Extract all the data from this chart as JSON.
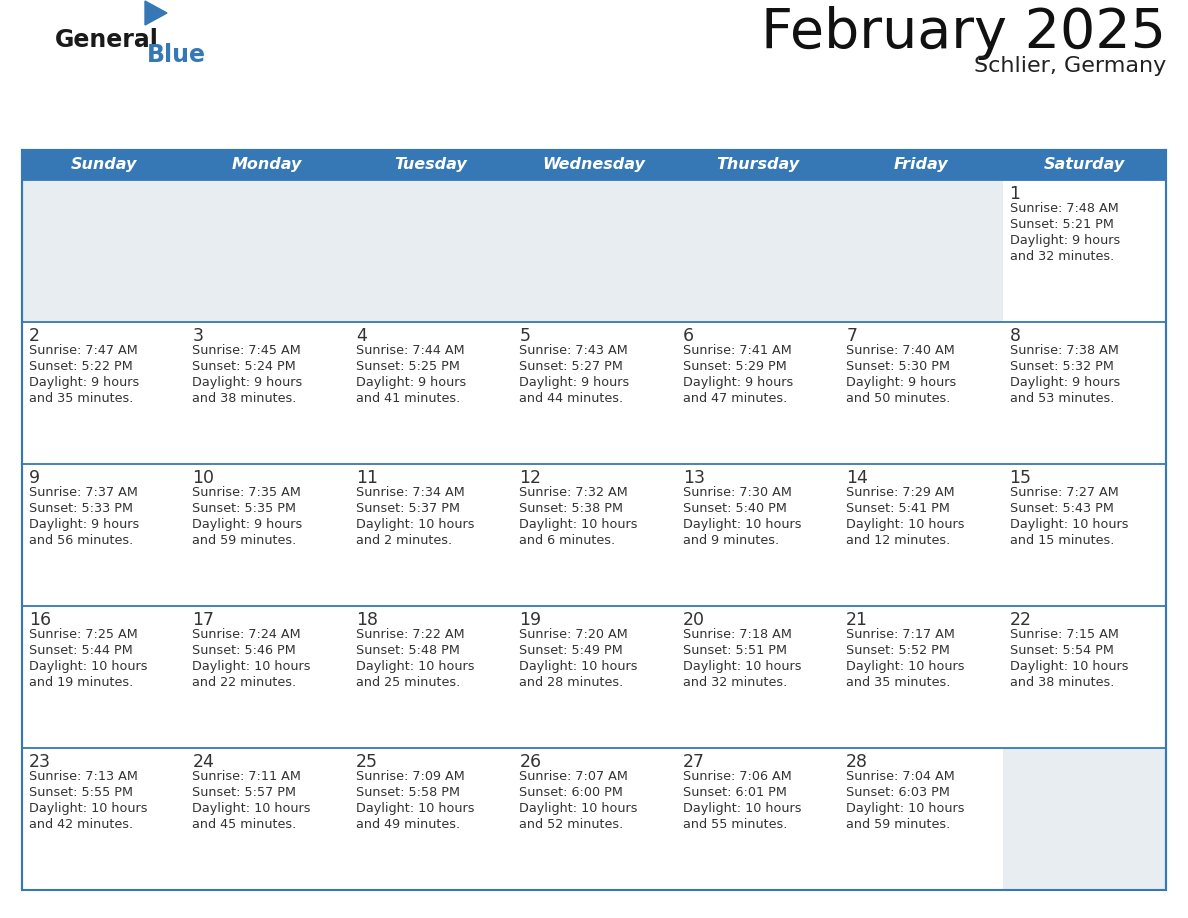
{
  "title": "February 2025",
  "subtitle": "Schlier, Germany",
  "header_bg_color": "#3578b5",
  "header_text_color": "#ffffff",
  "cell_white_bg": "#ffffff",
  "cell_gray_bg": "#e8edf2",
  "outer_border_color": "#3578b5",
  "row_separator_color": "#3578b5",
  "day_number_color": "#333333",
  "cell_text_color": "#333333",
  "weekdays": [
    "Sunday",
    "Monday",
    "Tuesday",
    "Wednesday",
    "Thursday",
    "Friday",
    "Saturday"
  ],
  "calendar_data": [
    [
      {
        "day": null,
        "sunrise": null,
        "sunset": null,
        "daylight": null
      },
      {
        "day": null,
        "sunrise": null,
        "sunset": null,
        "daylight": null
      },
      {
        "day": null,
        "sunrise": null,
        "sunset": null,
        "daylight": null
      },
      {
        "day": null,
        "sunrise": null,
        "sunset": null,
        "daylight": null
      },
      {
        "day": null,
        "sunrise": null,
        "sunset": null,
        "daylight": null
      },
      {
        "day": null,
        "sunrise": null,
        "sunset": null,
        "daylight": null
      },
      {
        "day": 1,
        "sunrise": "7:48 AM",
        "sunset": "5:21 PM",
        "daylight": "9 hours\nand 32 minutes."
      }
    ],
    [
      {
        "day": 2,
        "sunrise": "7:47 AM",
        "sunset": "5:22 PM",
        "daylight": "9 hours\nand 35 minutes."
      },
      {
        "day": 3,
        "sunrise": "7:45 AM",
        "sunset": "5:24 PM",
        "daylight": "9 hours\nand 38 minutes."
      },
      {
        "day": 4,
        "sunrise": "7:44 AM",
        "sunset": "5:25 PM",
        "daylight": "9 hours\nand 41 minutes."
      },
      {
        "day": 5,
        "sunrise": "7:43 AM",
        "sunset": "5:27 PM",
        "daylight": "9 hours\nand 44 minutes."
      },
      {
        "day": 6,
        "sunrise": "7:41 AM",
        "sunset": "5:29 PM",
        "daylight": "9 hours\nand 47 minutes."
      },
      {
        "day": 7,
        "sunrise": "7:40 AM",
        "sunset": "5:30 PM",
        "daylight": "9 hours\nand 50 minutes."
      },
      {
        "day": 8,
        "sunrise": "7:38 AM",
        "sunset": "5:32 PM",
        "daylight": "9 hours\nand 53 minutes."
      }
    ],
    [
      {
        "day": 9,
        "sunrise": "7:37 AM",
        "sunset": "5:33 PM",
        "daylight": "9 hours\nand 56 minutes."
      },
      {
        "day": 10,
        "sunrise": "7:35 AM",
        "sunset": "5:35 PM",
        "daylight": "9 hours\nand 59 minutes."
      },
      {
        "day": 11,
        "sunrise": "7:34 AM",
        "sunset": "5:37 PM",
        "daylight": "10 hours\nand 2 minutes."
      },
      {
        "day": 12,
        "sunrise": "7:32 AM",
        "sunset": "5:38 PM",
        "daylight": "10 hours\nand 6 minutes."
      },
      {
        "day": 13,
        "sunrise": "7:30 AM",
        "sunset": "5:40 PM",
        "daylight": "10 hours\nand 9 minutes."
      },
      {
        "day": 14,
        "sunrise": "7:29 AM",
        "sunset": "5:41 PM",
        "daylight": "10 hours\nand 12 minutes."
      },
      {
        "day": 15,
        "sunrise": "7:27 AM",
        "sunset": "5:43 PM",
        "daylight": "10 hours\nand 15 minutes."
      }
    ],
    [
      {
        "day": 16,
        "sunrise": "7:25 AM",
        "sunset": "5:44 PM",
        "daylight": "10 hours\nand 19 minutes."
      },
      {
        "day": 17,
        "sunrise": "7:24 AM",
        "sunset": "5:46 PM",
        "daylight": "10 hours\nand 22 minutes."
      },
      {
        "day": 18,
        "sunrise": "7:22 AM",
        "sunset": "5:48 PM",
        "daylight": "10 hours\nand 25 minutes."
      },
      {
        "day": 19,
        "sunrise": "7:20 AM",
        "sunset": "5:49 PM",
        "daylight": "10 hours\nand 28 minutes."
      },
      {
        "day": 20,
        "sunrise": "7:18 AM",
        "sunset": "5:51 PM",
        "daylight": "10 hours\nand 32 minutes."
      },
      {
        "day": 21,
        "sunrise": "7:17 AM",
        "sunset": "5:52 PM",
        "daylight": "10 hours\nand 35 minutes."
      },
      {
        "day": 22,
        "sunrise": "7:15 AM",
        "sunset": "5:54 PM",
        "daylight": "10 hours\nand 38 minutes."
      }
    ],
    [
      {
        "day": 23,
        "sunrise": "7:13 AM",
        "sunset": "5:55 PM",
        "daylight": "10 hours\nand 42 minutes."
      },
      {
        "day": 24,
        "sunrise": "7:11 AM",
        "sunset": "5:57 PM",
        "daylight": "10 hours\nand 45 minutes."
      },
      {
        "day": 25,
        "sunrise": "7:09 AM",
        "sunset": "5:58 PM",
        "daylight": "10 hours\nand 49 minutes."
      },
      {
        "day": 26,
        "sunrise": "7:07 AM",
        "sunset": "6:00 PM",
        "daylight": "10 hours\nand 52 minutes."
      },
      {
        "day": 27,
        "sunrise": "7:06 AM",
        "sunset": "6:01 PM",
        "daylight": "10 hours\nand 55 minutes."
      },
      {
        "day": 28,
        "sunrise": "7:04 AM",
        "sunset": "6:03 PM",
        "daylight": "10 hours\nand 59 minutes."
      },
      {
        "day": null,
        "sunrise": null,
        "sunset": null,
        "daylight": null
      }
    ]
  ],
  "logo_general_color": "#1a1a1a",
  "logo_blue_color": "#3578b5",
  "fig_width": 11.88,
  "fig_height": 9.18,
  "dpi": 100
}
